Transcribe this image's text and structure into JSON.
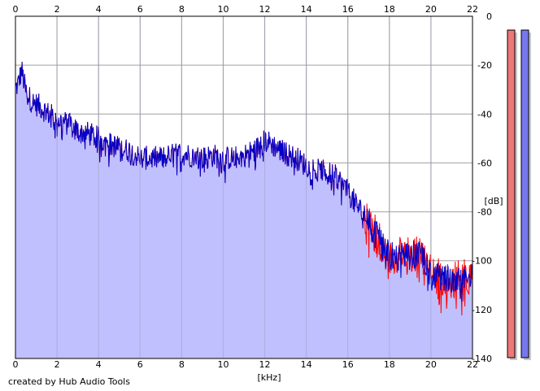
{
  "chart_data": {
    "type": "area",
    "xlabel": "[kHz]",
    "ylabel": "[dB]",
    "xlim": [
      0,
      22
    ],
    "ylim": [
      -140,
      0
    ],
    "x_ticks": [
      "0",
      "2",
      "4",
      "6",
      "8",
      "10",
      "12",
      "14",
      "16",
      "18",
      "20",
      "22"
    ],
    "y_ticks": [
      "0",
      "-20",
      "-40",
      "-60",
      "-80",
      "-100",
      "-120",
      "-140"
    ],
    "grid": true,
    "envelope": {
      "x": [
        0,
        0.15,
        0.3,
        0.5,
        0.8,
        1.2,
        1.6,
        2.0,
        2.5,
        3.0,
        3.5,
        4.0,
        4.5,
        5.0,
        5.5,
        6.0,
        6.5,
        7.0,
        7.5,
        8.0,
        8.5,
        9.0,
        9.5,
        10.0,
        10.5,
        11.0,
        11.5,
        12.0,
        12.3,
        12.6,
        13.0,
        13.5,
        14.0,
        14.5,
        15.0,
        15.5,
        16.0,
        16.5,
        17.0,
        17.4,
        17.8,
        18.2,
        18.6,
        19.0,
        19.4,
        19.6,
        19.8,
        20.0,
        20.5,
        21.0,
        21.5,
        22.0
      ],
      "y": [
        -30,
        -27,
        -22,
        -31,
        -35,
        -37,
        -40,
        -42,
        -44,
        -47,
        -48,
        -50,
        -52,
        -54,
        -55,
        -58,
        -58,
        -58,
        -57,
        -56,
        -57,
        -58,
        -57,
        -58,
        -58,
        -57,
        -55,
        -51,
        -52,
        -54,
        -56,
        -58,
        -61,
        -63,
        -64,
        -66,
        -72,
        -78,
        -84,
        -90,
        -96,
        -98,
        -98,
        -98,
        -97,
        -97,
        -101,
        -106,
        -107,
        -108,
        -107,
        -107
      ]
    },
    "series": [
      {
        "color": "#ff0000",
        "fill": "#ee7777"
      },
      {
        "color": "#0000c8",
        "fill": "#7777ee"
      }
    ],
    "level_meters": [
      {
        "color": "#ee7777",
        "level": 0.0
      },
      {
        "color": "#7777ee",
        "level": 0.0
      }
    ],
    "area_fill_color": "#c0c0ff",
    "credit": "created by Hub Audio Tools"
  }
}
